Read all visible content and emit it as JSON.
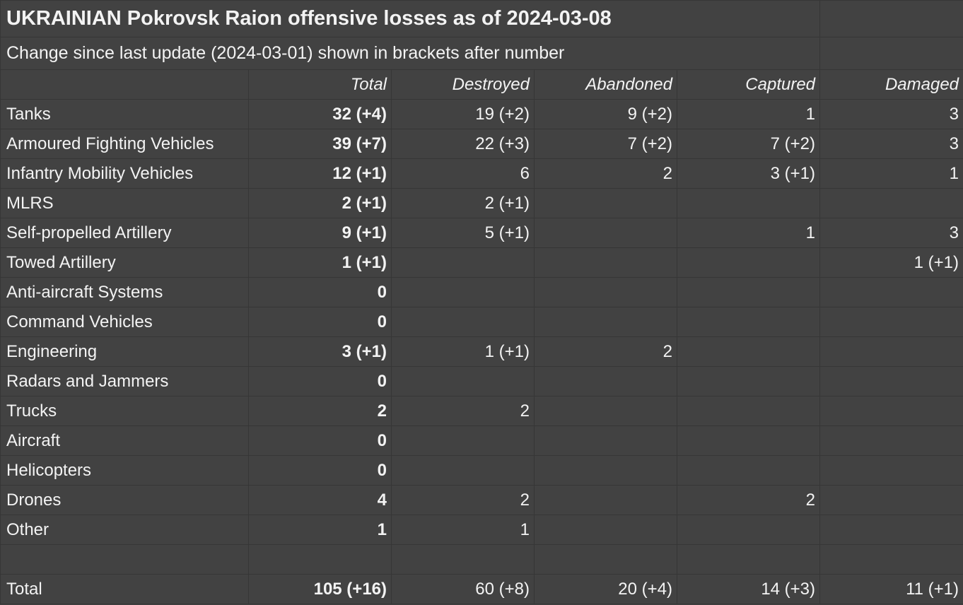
{
  "title": "UKRAINIAN Pokrovsk Raion offensive losses as of 2024-03-08",
  "subtitle": "Change since last update (2024-03-01) shown in brackets after number",
  "headers": [
    "",
    "Total",
    "Destroyed",
    "Abandoned",
    "Captured",
    "Damaged"
  ],
  "rows": [
    [
      "Tanks",
      "32 (+4)",
      "19 (+2)",
      "9 (+2)",
      "1",
      "3"
    ],
    [
      "Armoured Fighting Vehicles",
      "39 (+7)",
      "22 (+3)",
      "7 (+2)",
      "7 (+2)",
      "3"
    ],
    [
      "Infantry Mobility Vehicles",
      "12 (+1)",
      "6",
      "2",
      "3 (+1)",
      "1"
    ],
    [
      "MLRS",
      "2 (+1)",
      "2 (+1)",
      "",
      "",
      ""
    ],
    [
      "Self-propelled Artillery",
      "9 (+1)",
      "5 (+1)",
      "",
      "1",
      "3"
    ],
    [
      "Towed Artillery",
      "1 (+1)",
      "",
      "",
      "",
      "1 (+1)"
    ],
    [
      "Anti-aircraft Systems",
      "0",
      "",
      "",
      "",
      ""
    ],
    [
      "Command Vehicles",
      "0",
      "",
      "",
      "",
      ""
    ],
    [
      "Engineering",
      "3 (+1)",
      "1 (+1)",
      "2",
      "",
      ""
    ],
    [
      "Radars and Jammers",
      "0",
      "",
      "",
      "",
      ""
    ],
    [
      "Trucks",
      "2",
      "2",
      "",
      "",
      ""
    ],
    [
      "Aircraft",
      "0",
      "",
      "",
      "",
      ""
    ],
    [
      "Helicopters",
      "0",
      "",
      "",
      "",
      ""
    ],
    [
      "Drones",
      "4",
      "2",
      "",
      "2",
      ""
    ],
    [
      "Other",
      "1",
      "1",
      "",
      "",
      ""
    ],
    [
      "",
      "",
      "",
      "",
      "",
      ""
    ]
  ],
  "total": [
    "Total",
    "105 (+16)",
    "60 (+8)",
    "20 (+4)",
    "14 (+3)",
    "11 (+1)"
  ]
}
